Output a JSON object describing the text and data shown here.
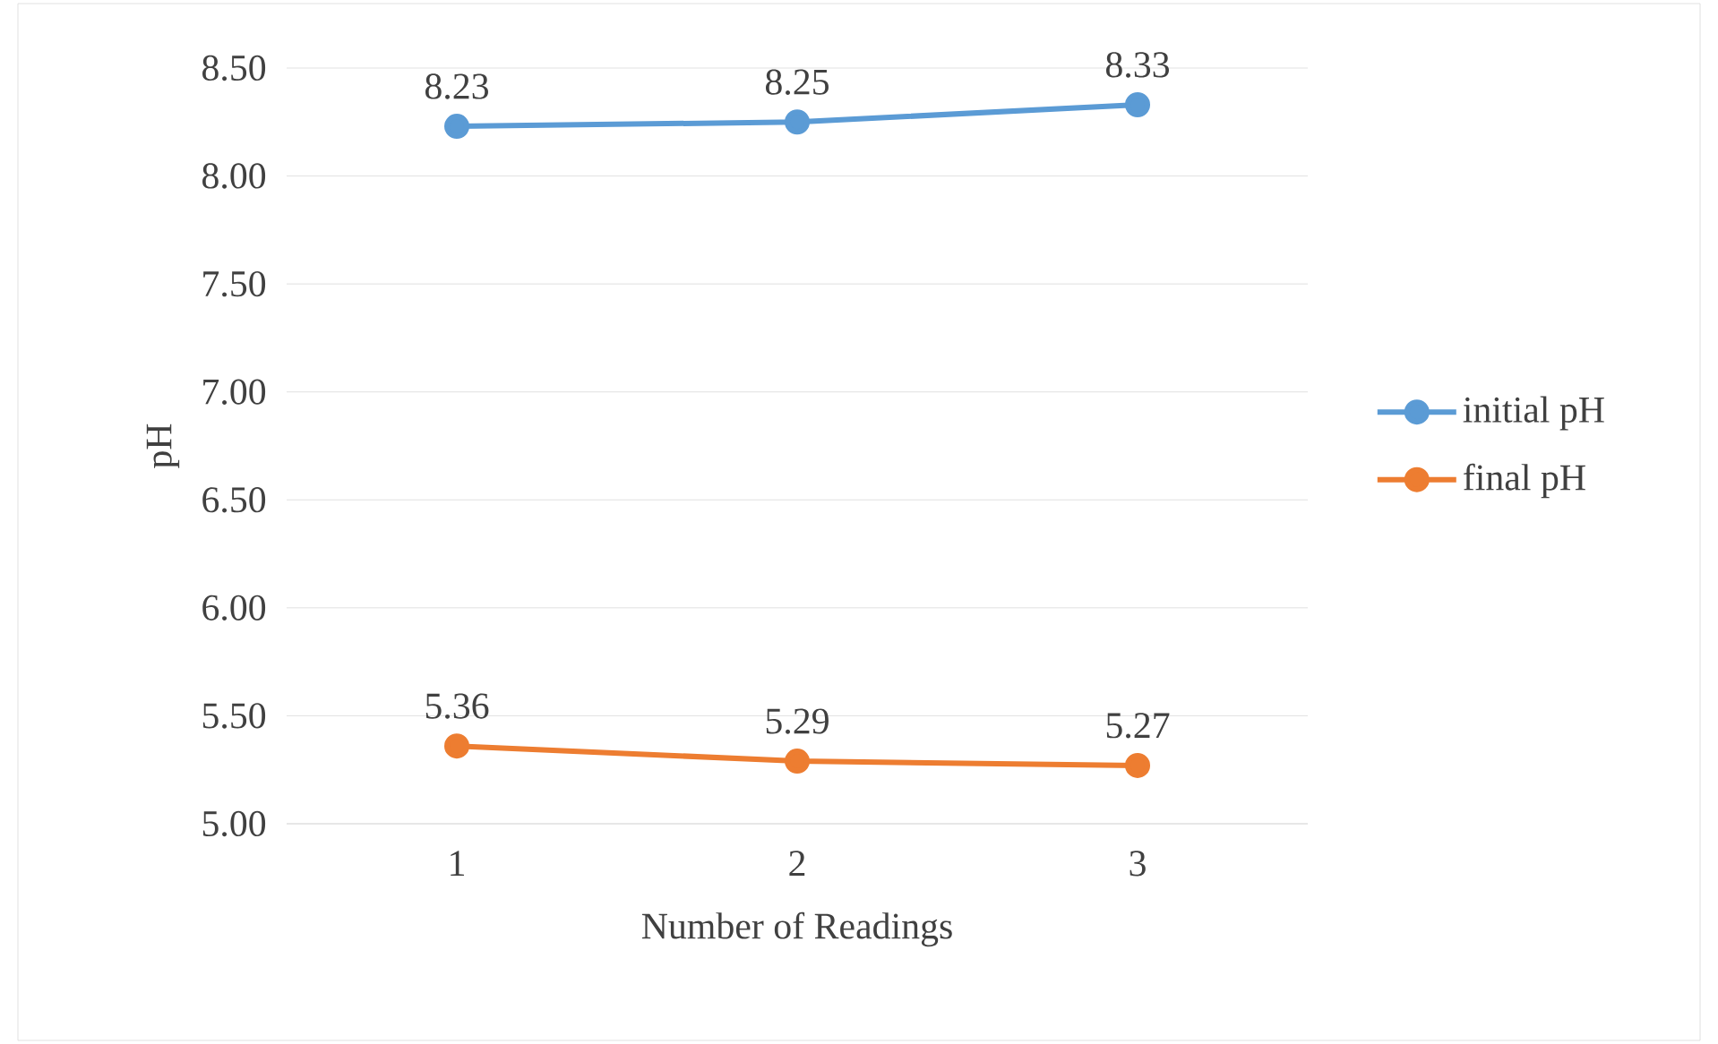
{
  "chart_data": {
    "type": "line",
    "xlabel": "Number of Readings",
    "ylabel": "pH",
    "categories": [
      "1",
      "2",
      "3"
    ],
    "series": [
      {
        "name": "initial pH",
        "color": "#5b9bd5",
        "values": [
          8.23,
          8.25,
          8.33
        ]
      },
      {
        "name": "final pH",
        "color": "#ed7d31",
        "values": [
          5.36,
          5.29,
          5.27
        ]
      }
    ],
    "ylim": [
      5.0,
      8.5
    ],
    "yticks": [
      {
        "value": 5.0,
        "label": "5.00"
      },
      {
        "value": 5.5,
        "label": "5.50"
      },
      {
        "value": 6.0,
        "label": "6.00"
      },
      {
        "value": 6.5,
        "label": "6.50"
      },
      {
        "value": 7.0,
        "label": "7.00"
      },
      {
        "value": 7.5,
        "label": "7.50"
      },
      {
        "value": 8.0,
        "label": "8.00"
      },
      {
        "value": 8.5,
        "label": "8.50"
      }
    ],
    "grid": "y",
    "legend": "right",
    "marker": "circle",
    "line_style": "solid",
    "data_labels": true
  }
}
